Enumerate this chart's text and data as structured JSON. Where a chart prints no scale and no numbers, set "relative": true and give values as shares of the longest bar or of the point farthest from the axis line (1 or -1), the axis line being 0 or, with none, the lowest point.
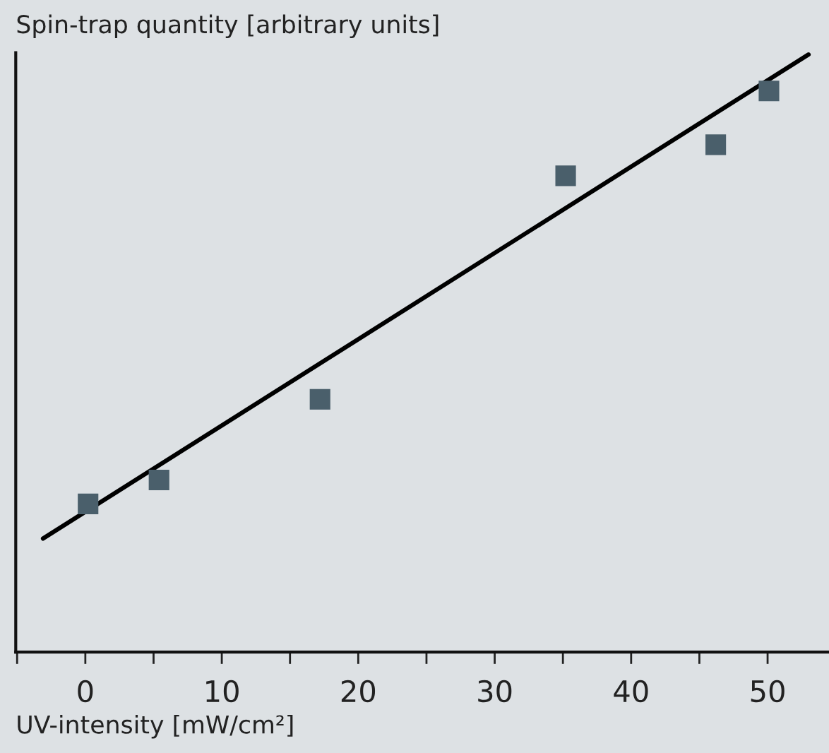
{
  "chart_data": {
    "type": "scatter",
    "relative": true,
    "xlabel": "UV-intensity [mW/cm²]",
    "ylabel": "Spin-trap quantity [arbitrary units]",
    "xlim": [
      -5.1,
      54.5
    ],
    "xticks": [
      {
        "value": -5,
        "label": null
      },
      0,
      {
        "value": 5,
        "label": null
      },
      10,
      {
        "value": 15,
        "label": null
      },
      20,
      {
        "value": 25,
        "label": null
      },
      30,
      {
        "value": 35,
        "label": null
      },
      40,
      {
        "value": 45,
        "label": null
      },
      50
    ],
    "tick_labels": "x",
    "grid": false,
    "legend": false,
    "marker": "square",
    "series": [
      {
        "color": "#4a5f6b",
        "x": [
          0.2,
          5.4,
          17.2,
          35.2,
          46.2,
          50.1
        ],
        "values": [
          0.248,
          0.288,
          0.423,
          0.797,
          0.849,
          0.939
        ]
      },
      {
        "type": "line",
        "color": "#000000",
        "line_style": "solid",
        "marker": "none",
        "x": [
          -3.1,
          53.0
        ],
        "values": [
          0.19,
          1.0
        ]
      }
    ]
  }
}
